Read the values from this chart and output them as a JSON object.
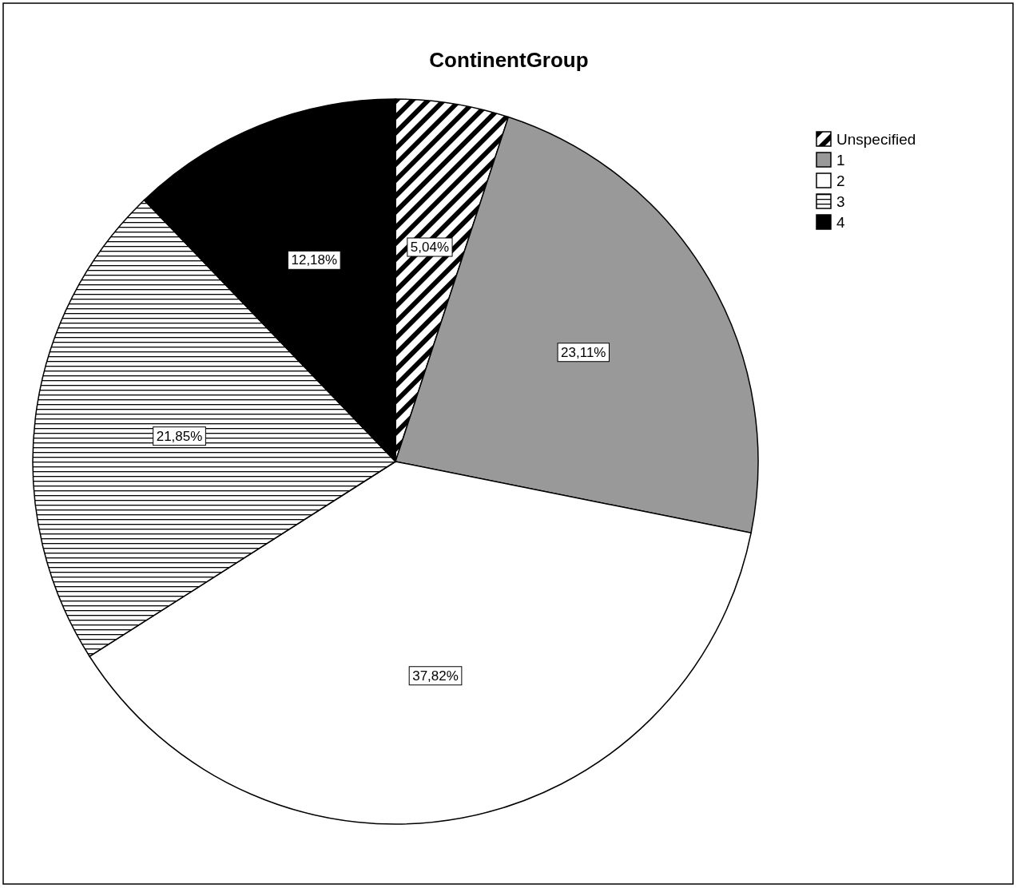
{
  "chart_data": {
    "type": "pie",
    "title": "ContinentGroup",
    "categories": [
      "Unspecified",
      "1",
      "2",
      "3",
      "4"
    ],
    "values": [
      5.04,
      23.11,
      37.82,
      21.85,
      12.18
    ],
    "value_labels": [
      "5,04%",
      "23,11%",
      "37,82%",
      "21,85%",
      "12,18%"
    ],
    "colors": [
      "#ffffff",
      "#999999",
      "#ffffff",
      "#ffffff",
      "#000000"
    ],
    "legend": "top right"
  }
}
